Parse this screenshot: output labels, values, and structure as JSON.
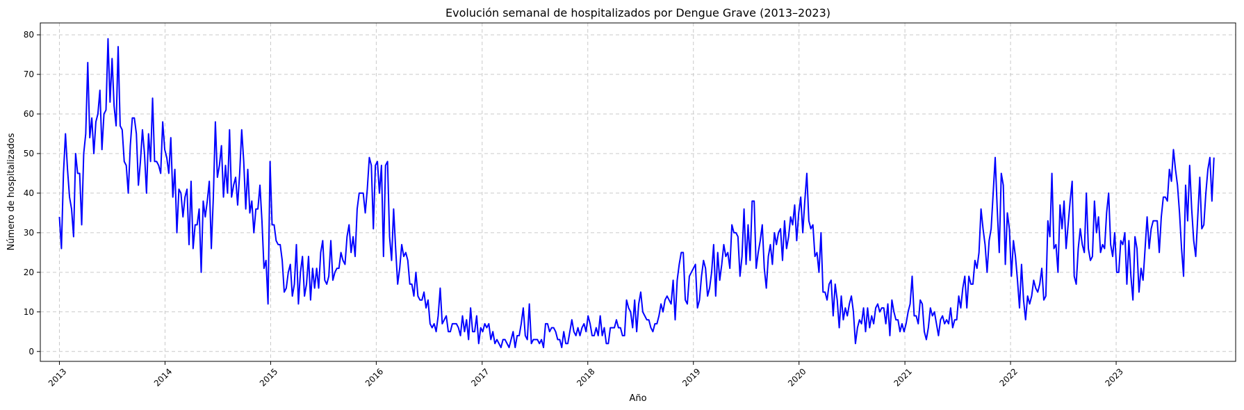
{
  "chart_data": {
    "type": "line",
    "title": "Evolución semanal de hospitalizados por Dengue Grave (2013–2023)",
    "xlabel": "Año",
    "ylabel": "Número de hospitalizados",
    "x_ticks": [
      "2013",
      "2014",
      "2015",
      "2016",
      "2017",
      "2018",
      "2019",
      "2020",
      "2021",
      "2022",
      "2023"
    ],
    "y_ticks": [
      0,
      10,
      20,
      30,
      40,
      50,
      60,
      70,
      80
    ],
    "xlim": [
      "2012-10-27",
      "2024-02-18"
    ],
    "ylim": [
      -2.5,
      83
    ],
    "grid": true,
    "series": [
      {
        "color": "#0000ff",
        "x_start": "2013-01-01",
        "interval": "weekly",
        "values": [
          34,
          26,
          45,
          55,
          46,
          39,
          36,
          29,
          50,
          45,
          45,
          32,
          50,
          55,
          73,
          54,
          59,
          50,
          58,
          60,
          66,
          51,
          60,
          61,
          79,
          63,
          74,
          62,
          57,
          77,
          57,
          56,
          48,
          47,
          40,
          52,
          59,
          59,
          55,
          42,
          48,
          56,
          50,
          40,
          55,
          48,
          64,
          48,
          48,
          47,
          45,
          58,
          51,
          49,
          45,
          54,
          39,
          46,
          30,
          41,
          40,
          34,
          39,
          41,
          27,
          43,
          26,
          32,
          32,
          36,
          20,
          38,
          34,
          38,
          43,
          26,
          39,
          58,
          44,
          47,
          52,
          39,
          47,
          40,
          56,
          39,
          42,
          44,
          37,
          45,
          56,
          48,
          36,
          46,
          35,
          38,
          30,
          36,
          36,
          42,
          33,
          21,
          23,
          12,
          48,
          32,
          32,
          28,
          27,
          27,
          23,
          15,
          16,
          20,
          22,
          14,
          17,
          27,
          12,
          20,
          24,
          14,
          17,
          24,
          13,
          21,
          16,
          21,
          16,
          25,
          28,
          18,
          17,
          19,
          28,
          18,
          20,
          21,
          21,
          25,
          23,
          22,
          29,
          32,
          25,
          29,
          24,
          36,
          40,
          40,
          40,
          35,
          41,
          49,
          47,
          31,
          47,
          48,
          40,
          47,
          24,
          47,
          48,
          29,
          23,
          36,
          26,
          17,
          21,
          27,
          24,
          25,
          23,
          17,
          17,
          14,
          20,
          14,
          13,
          13,
          15,
          11,
          13,
          7,
          6,
          7,
          5,
          9,
          16,
          7,
          8,
          9,
          5,
          5,
          7,
          7,
          7,
          6,
          4,
          9,
          5,
          8,
          3,
          11,
          5,
          5,
          9,
          2,
          6,
          5,
          7,
          6,
          7,
          3,
          5,
          2,
          3,
          2,
          1,
          3,
          3,
          2,
          1,
          3,
          5,
          1,
          4,
          4,
          7,
          11,
          4,
          3,
          12,
          2,
          3,
          3,
          3,
          2,
          3,
          1,
          7,
          7,
          5,
          6,
          6,
          5,
          3,
          3,
          1,
          5,
          2,
          2,
          5,
          8,
          5,
          4,
          6,
          4,
          6,
          7,
          5,
          9,
          7,
          4,
          4,
          6,
          4,
          9,
          4,
          6,
          2,
          2,
          6,
          6,
          6,
          8,
          6,
          6,
          4,
          4,
          13,
          11,
          10,
          6,
          13,
          5,
          12,
          15,
          10,
          9,
          8,
          8,
          6,
          5,
          7,
          7,
          9,
          12,
          10,
          13,
          14,
          13,
          12,
          18,
          8,
          18,
          22,
          25,
          25,
          13,
          12,
          19,
          20,
          21,
          22,
          11,
          13,
          19,
          23,
          21,
          14,
          16,
          20,
          27,
          14,
          25,
          18,
          22,
          27,
          24,
          25,
          21,
          32,
          30,
          30,
          29,
          19,
          24,
          36,
          22,
          32,
          23,
          38,
          38,
          21,
          25,
          28,
          32,
          21,
          16,
          24,
          27,
          22,
          30,
          27,
          30,
          31,
          23,
          33,
          26,
          29,
          34,
          32,
          37,
          28,
          35,
          39,
          30,
          38,
          45,
          33,
          31,
          32,
          24,
          25,
          20,
          30,
          15,
          15,
          13,
          17,
          18,
          9,
          17,
          13,
          6,
          14,
          8,
          11,
          9,
          12,
          14,
          10,
          2,
          6,
          8,
          7,
          11,
          5,
          11,
          6,
          9,
          7,
          11,
          12,
          10,
          11,
          11,
          7,
          12,
          4,
          13,
          10,
          8,
          8,
          5,
          7,
          5,
          7,
          10,
          12,
          19,
          9,
          9,
          7,
          13,
          12,
          5,
          3,
          6,
          11,
          9,
          10,
          7,
          4,
          8,
          9,
          7,
          8,
          7,
          11,
          6,
          8,
          8,
          14,
          11,
          16,
          19,
          11,
          19,
          17,
          17,
          23,
          21,
          25,
          36,
          31,
          27,
          20,
          28,
          31,
          40,
          49,
          36,
          25,
          45,
          42,
          22,
          35,
          31,
          19,
          28,
          24,
          18,
          11,
          22,
          13,
          8,
          14,
          12,
          14,
          18,
          16,
          15,
          17,
          21,
          13,
          14,
          33,
          29,
          45,
          26,
          27,
          20,
          37,
          31,
          38,
          26,
          32,
          38,
          43,
          19,
          17,
          26,
          31,
          27,
          25,
          40,
          26,
          23,
          24,
          38,
          30,
          34,
          25,
          27,
          26,
          35,
          40,
          27,
          24,
          30,
          20,
          20,
          28,
          27,
          30,
          17,
          28,
          19,
          13,
          29,
          26,
          15,
          21,
          18,
          26,
          34,
          26,
          31,
          33,
          33,
          33,
          25,
          34,
          39,
          39,
          38,
          46,
          43,
          51,
          46,
          42,
          35,
          26,
          19,
          42,
          33,
          47,
          36,
          28,
          24,
          34,
          44,
          31,
          32,
          40,
          46,
          49,
          38,
          49
        ]
      }
    ]
  }
}
